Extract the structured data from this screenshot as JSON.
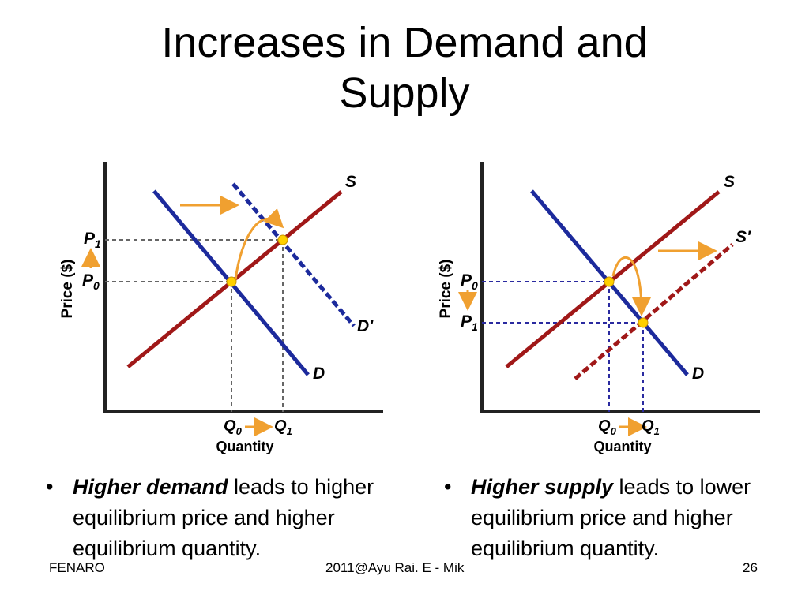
{
  "slide": {
    "title_line1": "Increases in Demand and",
    "title_line2": "Supply"
  },
  "left_graph": {
    "ylabel": "Price ($)",
    "xlabel": "Quantity",
    "p_upper": "P",
    "p_upper_sub": "1",
    "p_lower": "P",
    "p_lower_sub": "0",
    "q_left": "Q",
    "q_left_sub": "0",
    "q_right": "Q",
    "q_right_sub": "1",
    "supply_label": "S",
    "demand_label": "D",
    "demand_new_label": "D'"
  },
  "right_graph": {
    "ylabel": "Price ($)",
    "xlabel": "Quantity",
    "p_upper": "P",
    "p_upper_sub": "0",
    "p_lower": "P",
    "p_lower_sub": "1",
    "q_left": "Q",
    "q_left_sub": "0",
    "q_right": "Q",
    "q_right_sub": "1",
    "supply_label": "S",
    "supply_new_label": "S'",
    "demand_label": "D"
  },
  "bullets": {
    "left_bold": "Higher demand",
    "left_rest": " leads to higher equilibrium price and higher equilibrium quantity.",
    "right_bold": "Higher supply",
    "right_rest": " leads to lower equilibrium price and higher equilibrium quantity."
  },
  "footer": {
    "left": "FENARO",
    "center": "2011@Ayu Rai. E - Mik",
    "right": "26"
  },
  "colors": {
    "supply": "#a01818",
    "demand": "#1c2a9c",
    "arrow": "#f0a030",
    "point": "#ffd000",
    "dashed_left": "#666666",
    "dashed_right": "#2a2aa0"
  }
}
